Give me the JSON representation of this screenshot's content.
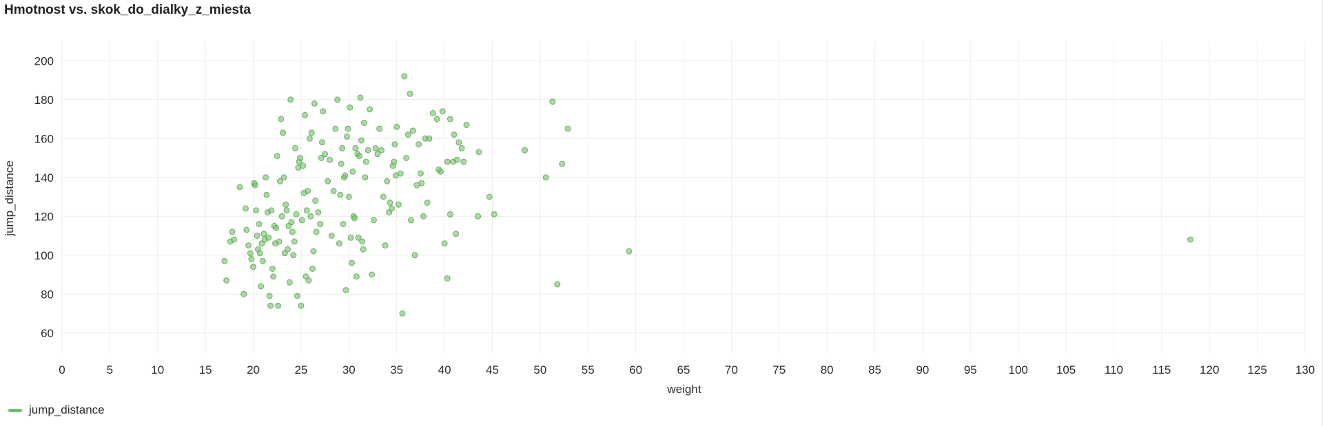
{
  "panel": {
    "title": "Hmotnost vs. skok_do_dialky_z_miesta"
  },
  "legend": {
    "items": [
      {
        "label": "jump_distance",
        "color": "#73bf69"
      }
    ]
  },
  "chart_data": {
    "type": "scatter",
    "title": "Hmotnost vs. skok_do_dialky_z_miesta",
    "xlabel": "weight",
    "ylabel": "jump_distance",
    "xlim": [
      0,
      130
    ],
    "ylim": [
      50,
      210
    ],
    "xticks": [
      0,
      5,
      10,
      15,
      20,
      25,
      30,
      35,
      40,
      45,
      50,
      55,
      60,
      65,
      70,
      75,
      80,
      85,
      90,
      95,
      100,
      105,
      110,
      115,
      120,
      125,
      130
    ],
    "yticks": [
      60,
      80,
      100,
      120,
      140,
      160,
      180,
      200
    ],
    "grid": true,
    "legend_position": "bottom-left",
    "series": [
      {
        "name": "jump_distance",
        "color": "#73bf69",
        "points": [
          [
            17.0,
            97
          ],
          [
            17.2,
            87
          ],
          [
            17.6,
            107
          ],
          [
            17.8,
            112
          ],
          [
            18.0,
            108
          ],
          [
            18.6,
            135
          ],
          [
            19.0,
            80
          ],
          [
            19.2,
            124
          ],
          [
            19.3,
            113
          ],
          [
            19.5,
            105
          ],
          [
            19.7,
            101
          ],
          [
            19.8,
            98
          ],
          [
            20.0,
            94
          ],
          [
            20.1,
            137
          ],
          [
            20.2,
            136
          ],
          [
            20.3,
            123
          ],
          [
            20.4,
            110
          ],
          [
            20.5,
            103
          ],
          [
            20.6,
            116
          ],
          [
            20.7,
            101
          ],
          [
            20.8,
            84
          ],
          [
            20.9,
            106
          ],
          [
            21.0,
            97
          ],
          [
            21.1,
            111
          ],
          [
            21.2,
            108
          ],
          [
            21.3,
            140
          ],
          [
            21.4,
            131
          ],
          [
            21.5,
            122
          ],
          [
            21.6,
            109
          ],
          [
            21.7,
            79
          ],
          [
            21.8,
            74
          ],
          [
            21.9,
            123
          ],
          [
            22.0,
            93
          ],
          [
            22.1,
            89
          ],
          [
            22.2,
            115
          ],
          [
            22.3,
            106
          ],
          [
            22.4,
            114
          ],
          [
            22.5,
            151
          ],
          [
            22.6,
            74
          ],
          [
            22.7,
            107
          ],
          [
            22.8,
            138
          ],
          [
            22.9,
            170
          ],
          [
            23.0,
            120
          ],
          [
            23.1,
            163
          ],
          [
            23.2,
            140
          ],
          [
            23.3,
            101
          ],
          [
            23.4,
            126
          ],
          [
            23.5,
            123
          ],
          [
            23.6,
            103
          ],
          [
            23.7,
            115
          ],
          [
            23.8,
            86
          ],
          [
            23.9,
            180
          ],
          [
            24.0,
            117
          ],
          [
            24.1,
            112
          ],
          [
            24.2,
            100
          ],
          [
            24.3,
            107
          ],
          [
            24.4,
            155
          ],
          [
            24.5,
            121
          ],
          [
            24.6,
            79
          ],
          [
            24.7,
            145
          ],
          [
            24.8,
            148
          ],
          [
            24.9,
            150
          ],
          [
            25.0,
            74
          ],
          [
            25.1,
            118
          ],
          [
            25.2,
            146
          ],
          [
            25.3,
            132
          ],
          [
            25.4,
            172
          ],
          [
            25.5,
            89
          ],
          [
            25.6,
            123
          ],
          [
            25.7,
            133
          ],
          [
            25.8,
            87
          ],
          [
            25.9,
            160
          ],
          [
            26.0,
            120
          ],
          [
            26.1,
            163
          ],
          [
            26.2,
            93
          ],
          [
            26.3,
            102
          ],
          [
            26.4,
            178
          ],
          [
            26.5,
            128
          ],
          [
            26.6,
            112
          ],
          [
            26.8,
            122
          ],
          [
            27.0,
            116
          ],
          [
            27.1,
            150
          ],
          [
            27.2,
            158
          ],
          [
            27.3,
            174
          ],
          [
            27.5,
            152
          ],
          [
            27.8,
            138
          ],
          [
            28.0,
            149
          ],
          [
            28.2,
            110
          ],
          [
            28.4,
            133
          ],
          [
            28.6,
            165
          ],
          [
            28.8,
            180
          ],
          [
            29.0,
            106
          ],
          [
            29.1,
            131
          ],
          [
            29.2,
            147
          ],
          [
            29.3,
            155
          ],
          [
            29.4,
            116
          ],
          [
            29.5,
            140
          ],
          [
            29.6,
            141
          ],
          [
            29.7,
            82
          ],
          [
            29.8,
            161
          ],
          [
            29.9,
            165
          ],
          [
            30.0,
            130
          ],
          [
            30.1,
            176
          ],
          [
            30.2,
            109
          ],
          [
            30.3,
            96
          ],
          [
            30.4,
            143
          ],
          [
            30.5,
            120
          ],
          [
            30.6,
            119
          ],
          [
            30.7,
            155
          ],
          [
            30.8,
            89
          ],
          [
            30.9,
            152
          ],
          [
            31.0,
            109
          ],
          [
            31.1,
            151
          ],
          [
            31.2,
            181
          ],
          [
            31.3,
            159
          ],
          [
            31.4,
            107
          ],
          [
            31.5,
            103
          ],
          [
            31.6,
            168
          ],
          [
            31.7,
            140
          ],
          [
            31.8,
            148
          ],
          [
            32.0,
            154
          ],
          [
            32.2,
            175
          ],
          [
            32.4,
            90
          ],
          [
            32.6,
            118
          ],
          [
            32.8,
            155
          ],
          [
            33.0,
            152
          ],
          [
            33.2,
            165
          ],
          [
            33.4,
            154
          ],
          [
            33.6,
            130
          ],
          [
            33.8,
            105
          ],
          [
            34.0,
            138
          ],
          [
            34.2,
            122
          ],
          [
            34.3,
            127
          ],
          [
            34.5,
            124
          ],
          [
            34.6,
            146
          ],
          [
            34.7,
            148
          ],
          [
            34.8,
            157
          ],
          [
            34.9,
            141
          ],
          [
            35.0,
            166
          ],
          [
            35.2,
            126
          ],
          [
            35.4,
            142
          ],
          [
            35.6,
            70
          ],
          [
            35.8,
            192
          ],
          [
            36.0,
            150
          ],
          [
            36.2,
            162
          ],
          [
            36.4,
            183
          ],
          [
            36.5,
            118
          ],
          [
            36.7,
            164
          ],
          [
            36.9,
            100
          ],
          [
            37.1,
            136
          ],
          [
            37.3,
            157
          ],
          [
            37.5,
            142
          ],
          [
            37.6,
            137
          ],
          [
            37.8,
            120
          ],
          [
            38.0,
            160
          ],
          [
            38.2,
            127
          ],
          [
            38.4,
            160
          ],
          [
            38.8,
            173
          ],
          [
            39.2,
            170
          ],
          [
            39.4,
            144
          ],
          [
            39.6,
            143
          ],
          [
            39.8,
            174
          ],
          [
            40.0,
            106
          ],
          [
            40.3,
            148
          ],
          [
            40.6,
            170
          ],
          [
            40.9,
            148
          ],
          [
            41.2,
            111
          ],
          [
            41.5,
            158
          ],
          [
            40.3,
            88
          ],
          [
            40.6,
            121
          ],
          [
            41.0,
            162
          ],
          [
            41.3,
            149
          ],
          [
            41.8,
            155
          ],
          [
            42.0,
            148
          ],
          [
            42.3,
            167
          ],
          [
            43.5,
            120
          ],
          [
            43.6,
            153
          ],
          [
            44.7,
            130
          ],
          [
            45.2,
            121
          ],
          [
            48.4,
            154
          ],
          [
            50.6,
            140
          ],
          [
            51.3,
            179
          ],
          [
            51.8,
            85
          ],
          [
            52.3,
            147
          ],
          [
            52.9,
            165
          ],
          [
            59.3,
            102
          ],
          [
            118.0,
            108
          ]
        ]
      }
    ]
  }
}
